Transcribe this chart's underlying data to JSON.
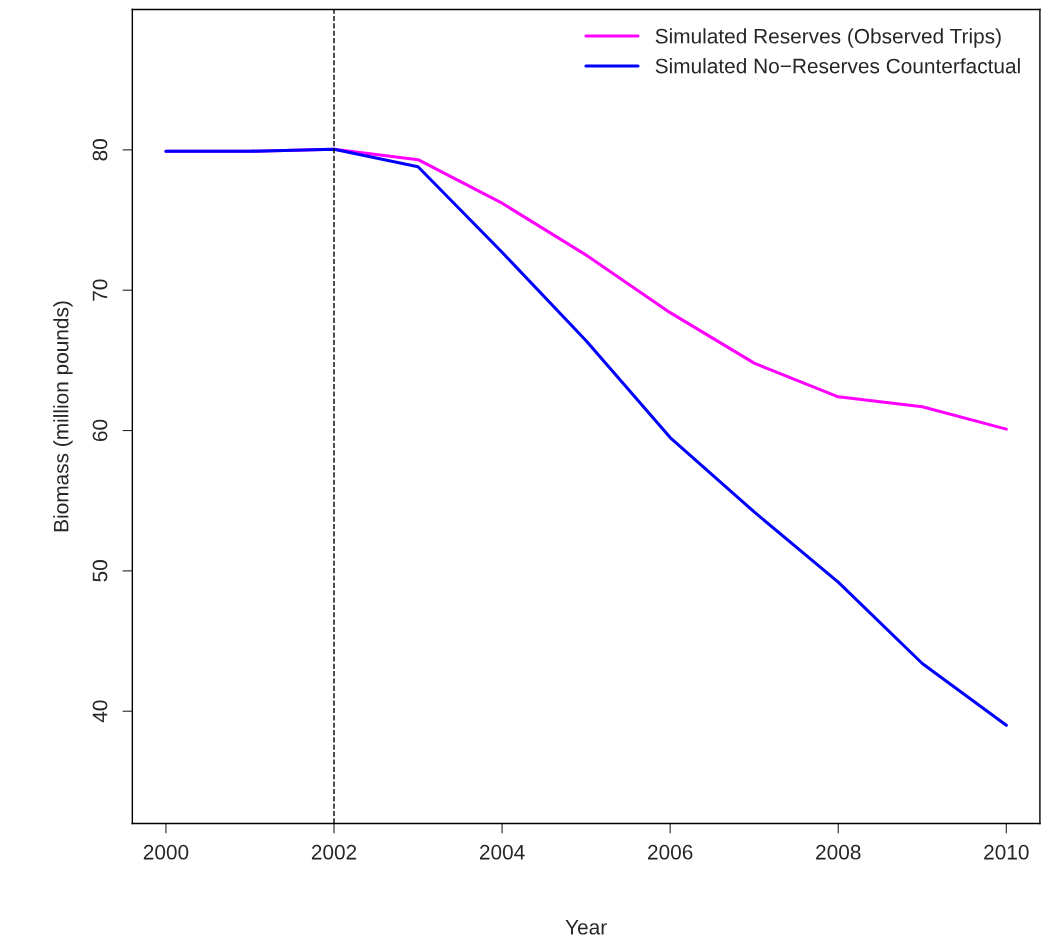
{
  "chart_data": {
    "type": "line",
    "xlabel": "Year",
    "ylabel": "Biomass (million pounds)",
    "x": [
      2000,
      2001,
      2002,
      2003,
      2004,
      2005,
      2006,
      2007,
      2008,
      2009,
      2010
    ],
    "series": [
      {
        "name": "Simulated Reserves (Observed Trips)",
        "color": "#ff00ff",
        "values": [
          79.9,
          79.9,
          80.05,
          79.3,
          76.2,
          72.5,
          68.4,
          64.8,
          62.4,
          61.7,
          60.1
        ]
      },
      {
        "name": "Simulated No−Reserves Counterfactual",
        "color": "#0000ff",
        "values": [
          79.9,
          79.9,
          80.05,
          78.8,
          72.7,
          66.4,
          59.5,
          54.2,
          49.2,
          43.4,
          39.0
        ]
      }
    ],
    "xlim": [
      1999.6,
      2010.4
    ],
    "ylim": [
      32,
      90
    ],
    "xticks": [
      2000,
      2002,
      2004,
      2006,
      2008,
      2010
    ],
    "yticks": [
      40,
      50,
      60,
      70,
      80
    ],
    "ref_lines": [
      {
        "axis": "x",
        "value": 2002,
        "color": "#000000",
        "line_style": "dashed"
      }
    ],
    "legend": "top right",
    "grid": false
  }
}
